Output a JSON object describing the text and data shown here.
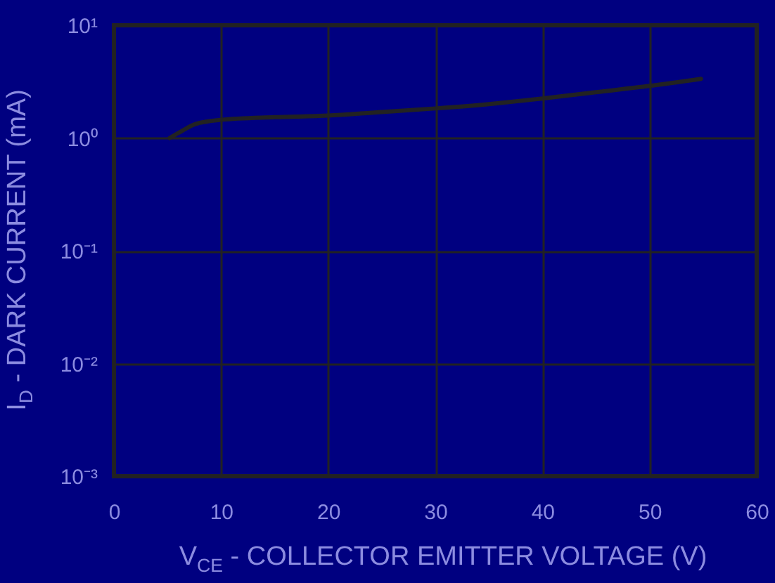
{
  "chart_data": {
    "type": "line",
    "xlabel": "V$_{CE}$ - COLLECTOR EMITTER VOLTAGE (V)",
    "ylabel": "I$_{D}$ - DARK CURRENT (mA)",
    "log": "y",
    "grid": true,
    "xlim": [
      0,
      60
    ],
    "xticks": [
      0,
      10,
      20,
      30,
      40,
      50,
      60
    ],
    "ylim": [
      0.001,
      10
    ],
    "yticks": [
      {
        "value": 10,
        "label": "10¹"
      },
      {
        "value": 1,
        "label": "10⁰"
      },
      {
        "value": 0.1,
        "label": "10⁻¹"
      },
      {
        "value": 0.01,
        "label": "10⁻²"
      },
      {
        "value": 0.001,
        "label": "10⁻³"
      }
    ],
    "series": [
      {
        "color": "#222222",
        "x": [
          5.2,
          6.3,
          7.6,
          10,
          15,
          20,
          25,
          30,
          35,
          40,
          45,
          50,
          54.8
        ],
        "values": [
          1.0,
          1.15,
          1.33,
          1.45,
          1.53,
          1.58,
          1.7,
          1.83,
          2.0,
          2.24,
          2.55,
          2.9,
          3.35
        ]
      }
    ]
  }
}
